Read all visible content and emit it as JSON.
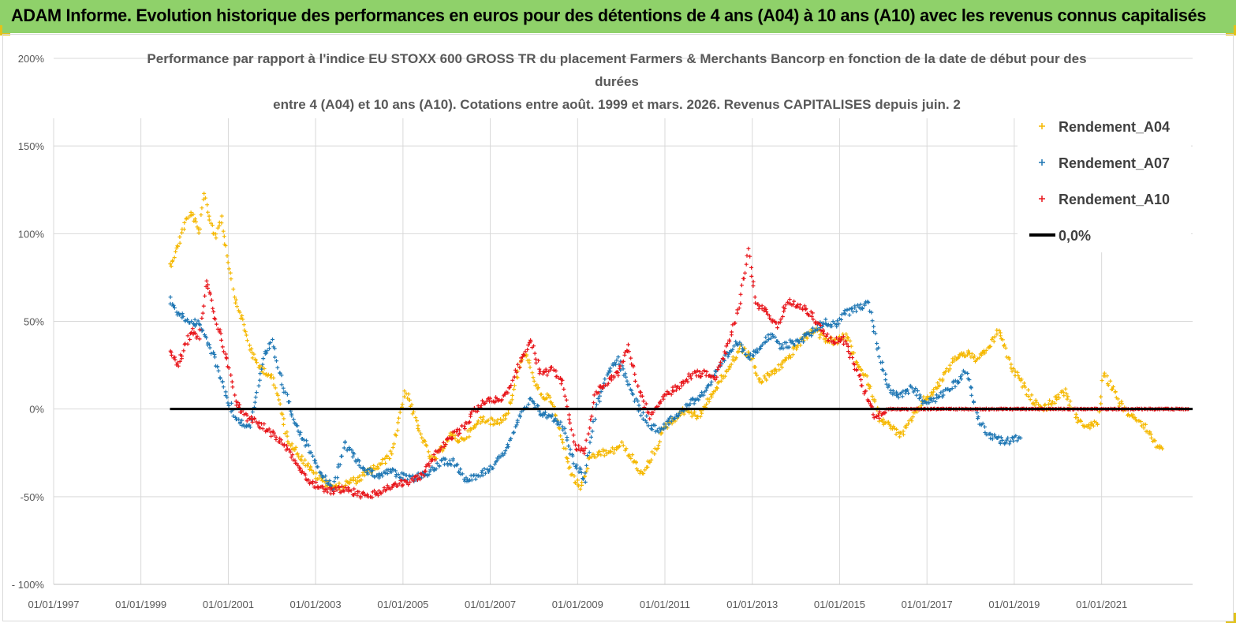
{
  "header": {
    "title": "ADAM Informe. Evolution historique des performances en euros pour des détentions de 4 ans (A04) à 10 ans (A10) avec les revenus connus capitalisés",
    "accent_color": "#8fd16a"
  },
  "chart_data": {
    "type": "scatter",
    "title_lines": [
      "Performance par rapport à l'indice EU STOXX 600 GROSS TR  du placement Farmers & Merchants Bancorp en fonction de la date de début pour des",
      "durées",
      "entre 4 (A04) et 10 ans (A10).  Cotations entre août. 1999 et mars.  2026. Revenus CAPITALISES depuis juin. 2"
    ],
    "ylim": [
      -100,
      200
    ],
    "yticks": [
      -100,
      -50,
      0,
      50,
      100,
      150,
      200
    ],
    "ytick_labels": [
      "- 100%",
      "-50%",
      "0%",
      "50%",
      "100%",
      "150%",
      "200%"
    ],
    "xlim": [
      "1997-01-01",
      "2023-02-01"
    ],
    "xtick_labels": [
      "01/01/1997",
      "01/01/1999",
      "01/01/2001",
      "01/01/2003",
      "01/01/2005",
      "01/01/2007",
      "01/01/2009",
      "01/01/2011",
      "01/01/2013",
      "01/01/2015",
      "01/01/2017",
      "01/01/2019",
      "01/01/2021"
    ],
    "grid": true,
    "legend_position": "top-right",
    "series": [
      {
        "name": "Rendement_A04",
        "color": "#f5b800",
        "marker": "+",
        "points": [
          [
            "1999-09-01",
            82
          ],
          [
            "1999-11-01",
            92
          ],
          [
            "2000-01-01",
            106
          ],
          [
            "2000-03-01",
            112
          ],
          [
            "2000-05-01",
            100
          ],
          [
            "2000-06-15",
            122
          ],
          [
            "2000-08-01",
            108
          ],
          [
            "2000-09-15",
            98
          ],
          [
            "2000-11-01",
            110
          ],
          [
            "2001-01-01",
            85
          ],
          [
            "2001-03-01",
            62
          ],
          [
            "2001-05-01",
            50
          ],
          [
            "2001-07-01",
            35
          ],
          [
            "2001-09-01",
            25
          ],
          [
            "2001-11-01",
            22
          ],
          [
            "2002-01-01",
            18
          ],
          [
            "2002-03-01",
            5
          ],
          [
            "2002-05-01",
            -15
          ],
          [
            "2002-07-01",
            -22
          ],
          [
            "2002-10-01",
            -30
          ],
          [
            "2003-01-01",
            -38
          ],
          [
            "2003-04-01",
            -42
          ],
          [
            "2003-07-01",
            -45
          ],
          [
            "2003-10-01",
            -42
          ],
          [
            "2004-01-01",
            -40
          ],
          [
            "2004-04-01",
            -35
          ],
          [
            "2004-07-01",
            -32
          ],
          [
            "2004-10-01",
            -25
          ],
          [
            "2004-12-01",
            -5
          ],
          [
            "2005-01-15",
            10
          ],
          [
            "2005-03-01",
            5
          ],
          [
            "2005-05-01",
            -10
          ],
          [
            "2005-07-01",
            -20
          ],
          [
            "2005-09-01",
            -30
          ],
          [
            "2005-11-01",
            -25
          ],
          [
            "2006-02-01",
            -15
          ],
          [
            "2006-05-01",
            -18
          ],
          [
            "2006-08-01",
            -12
          ],
          [
            "2006-11-01",
            -5
          ],
          [
            "2007-02-01",
            -8
          ],
          [
            "2007-05-01",
            -5
          ],
          [
            "2007-07-01",
            5
          ],
          [
            "2007-09-01",
            25
          ],
          [
            "2007-11-01",
            32
          ],
          [
            "2008-01-01",
            15
          ],
          [
            "2008-03-01",
            8
          ],
          [
            "2008-06-01",
            5
          ],
          [
            "2008-09-01",
            -20
          ],
          [
            "2008-12-01",
            -40
          ],
          [
            "2009-02-01",
            -45
          ],
          [
            "2009-04-01",
            -30
          ],
          [
            "2009-07-01",
            -25
          ],
          [
            "2009-10-01",
            -25
          ],
          [
            "2010-01-01",
            -20
          ],
          [
            "2010-04-01",
            -28
          ],
          [
            "2010-07-01",
            -38
          ],
          [
            "2010-10-01",
            -25
          ],
          [
            "2011-01-01",
            -10
          ],
          [
            "2011-04-01",
            -5
          ],
          [
            "2011-07-01",
            0
          ],
          [
            "2011-10-01",
            -5
          ],
          [
            "2012-01-01",
            5
          ],
          [
            "2012-04-01",
            15
          ],
          [
            "2012-07-01",
            25
          ],
          [
            "2012-10-01",
            35
          ],
          [
            "2013-01-01",
            28
          ],
          [
            "2013-03-01",
            15
          ],
          [
            "2013-06-01",
            20
          ],
          [
            "2013-09-01",
            25
          ],
          [
            "2013-12-01",
            32
          ],
          [
            "2014-03-01",
            40
          ],
          [
            "2014-06-01",
            45
          ],
          [
            "2014-09-01",
            40
          ],
          [
            "2014-12-01",
            38
          ],
          [
            "2015-03-01",
            42
          ],
          [
            "2015-06-01",
            25
          ],
          [
            "2015-09-01",
            15
          ],
          [
            "2015-12-01",
            -5
          ],
          [
            "2016-03-01",
            -10
          ],
          [
            "2016-06-01",
            -15
          ],
          [
            "2016-09-01",
            -5
          ],
          [
            "2016-12-01",
            5
          ],
          [
            "2017-03-01",
            10
          ],
          [
            "2017-06-01",
            20
          ],
          [
            "2017-09-01",
            30
          ],
          [
            "2017-12-01",
            32
          ],
          [
            "2018-03-01",
            28
          ],
          [
            "2018-06-01",
            35
          ],
          [
            "2018-09-01",
            45
          ],
          [
            "2018-12-01",
            25
          ],
          [
            "2019-03-01",
            15
          ],
          [
            "2019-06-01",
            5
          ],
          [
            "2019-09-01",
            0
          ],
          [
            "2019-12-01",
            5
          ],
          [
            "2020-03-01",
            10
          ],
          [
            "2020-06-01",
            -5
          ],
          [
            "2020-09-01",
            -10
          ],
          [
            "2020-12-01",
            -8
          ],
          [
            "2021-01-15",
            20
          ],
          [
            "2021-04-01",
            12
          ],
          [
            "2021-07-01",
            0
          ],
          [
            "2021-10-01",
            -5
          ],
          [
            "2022-01-01",
            -10
          ],
          [
            "2022-04-01",
            -20
          ],
          [
            "2022-06-01",
            -22
          ]
        ]
      },
      {
        "name": "Rendement_A07",
        "color": "#1f77b4",
        "marker": "+",
        "points": [
          [
            "1999-09-01",
            62
          ],
          [
            "1999-11-01",
            55
          ],
          [
            "2000-01-01",
            52
          ],
          [
            "2000-03-01",
            50
          ],
          [
            "2000-05-01",
            48
          ],
          [
            "2000-07-01",
            40
          ],
          [
            "2000-09-01",
            30
          ],
          [
            "2000-11-01",
            18
          ],
          [
            "2001-01-01",
            5
          ],
          [
            "2001-03-01",
            -5
          ],
          [
            "2001-05-01",
            -8
          ],
          [
            "2001-07-01",
            -10
          ],
          [
            "2001-09-01",
            10
          ],
          [
            "2001-11-01",
            30
          ],
          [
            "2002-01-01",
            38
          ],
          [
            "2002-03-01",
            22
          ],
          [
            "2002-06-01",
            0
          ],
          [
            "2002-09-01",
            -15
          ],
          [
            "2002-12-01",
            -25
          ],
          [
            "2003-03-01",
            -38
          ],
          [
            "2003-06-01",
            -45
          ],
          [
            "2003-09-01",
            -20
          ],
          [
            "2003-12-01",
            -28
          ],
          [
            "2004-03-01",
            -35
          ],
          [
            "2004-06-01",
            -38
          ],
          [
            "2004-09-01",
            -35
          ],
          [
            "2004-12-01",
            -38
          ],
          [
            "2005-03-01",
            -40
          ],
          [
            "2005-06-01",
            -38
          ],
          [
            "2005-09-01",
            -35
          ],
          [
            "2005-12-01",
            -30
          ],
          [
            "2006-03-01",
            -30
          ],
          [
            "2006-06-01",
            -40
          ],
          [
            "2006-09-01",
            -38
          ],
          [
            "2006-12-01",
            -35
          ],
          [
            "2007-03-01",
            -30
          ],
          [
            "2007-06-01",
            -20
          ],
          [
            "2007-09-01",
            -5
          ],
          [
            "2007-12-01",
            5
          ],
          [
            "2008-03-01",
            -2
          ],
          [
            "2008-06-01",
            -5
          ],
          [
            "2008-09-01",
            -10
          ],
          [
            "2008-12-01",
            -30
          ],
          [
            "2009-03-01",
            -40
          ],
          [
            "2009-06-01",
            0
          ],
          [
            "2009-09-01",
            20
          ],
          [
            "2009-12-01",
            28
          ],
          [
            "2010-03-01",
            15
          ],
          [
            "2010-06-01",
            0
          ],
          [
            "2010-09-01",
            -10
          ],
          [
            "2010-12-01",
            -12
          ],
          [
            "2011-03-01",
            -5
          ],
          [
            "2011-06-01",
            0
          ],
          [
            "2011-09-01",
            5
          ],
          [
            "2011-12-01",
            10
          ],
          [
            "2012-03-01",
            20
          ],
          [
            "2012-06-01",
            30
          ],
          [
            "2012-09-01",
            38
          ],
          [
            "2012-12-01",
            30
          ],
          [
            "2013-03-01",
            35
          ],
          [
            "2013-06-01",
            42
          ],
          [
            "2013-09-01",
            35
          ],
          [
            "2013-12-01",
            38
          ],
          [
            "2014-03-01",
            40
          ],
          [
            "2014-06-01",
            45
          ],
          [
            "2014-09-01",
            50
          ],
          [
            "2014-12-01",
            48
          ],
          [
            "2015-03-01",
            55
          ],
          [
            "2015-06-01",
            58
          ],
          [
            "2015-09-01",
            60
          ],
          [
            "2015-12-01",
            30
          ],
          [
            "2016-03-01",
            10
          ],
          [
            "2016-06-01",
            8
          ],
          [
            "2016-09-01",
            12
          ],
          [
            "2016-12-01",
            5
          ],
          [
            "2017-03-01",
            5
          ],
          [
            "2017-06-01",
            10
          ],
          [
            "2017-09-01",
            15
          ],
          [
            "2017-12-01",
            22
          ],
          [
            "2018-03-01",
            -5
          ],
          [
            "2018-06-01",
            -15
          ],
          [
            "2018-09-01",
            -18
          ],
          [
            "2018-12-01",
            -18
          ],
          [
            "2019-03-01",
            -15
          ]
        ]
      },
      {
        "name": "Rendement_A10",
        "color": "#e8161b",
        "marker": "+",
        "points": [
          [
            "1999-09-01",
            32
          ],
          [
            "1999-11-01",
            25
          ],
          [
            "2000-01-01",
            35
          ],
          [
            "2000-03-01",
            45
          ],
          [
            "2000-05-01",
            40
          ],
          [
            "2000-07-01",
            75
          ],
          [
            "2000-09-01",
            55
          ],
          [
            "2000-11-01",
            42
          ],
          [
            "2001-01-01",
            25
          ],
          [
            "2001-03-01",
            5
          ],
          [
            "2001-06-01",
            -5
          ],
          [
            "2001-09-01",
            -8
          ],
          [
            "2001-12-01",
            -12
          ],
          [
            "2002-03-01",
            -18
          ],
          [
            "2002-06-01",
            -25
          ],
          [
            "2002-09-01",
            -35
          ],
          [
            "2002-12-01",
            -42
          ],
          [
            "2003-03-01",
            -45
          ],
          [
            "2003-06-01",
            -47
          ],
          [
            "2003-09-01",
            -45
          ],
          [
            "2003-12-01",
            -48
          ],
          [
            "2004-03-01",
            -50
          ],
          [
            "2004-06-01",
            -48
          ],
          [
            "2004-09-01",
            -45
          ],
          [
            "2004-12-01",
            -42
          ],
          [
            "2005-03-01",
            -42
          ],
          [
            "2005-06-01",
            -38
          ],
          [
            "2005-09-01",
            -30
          ],
          [
            "2005-12-01",
            -20
          ],
          [
            "2006-03-01",
            -15
          ],
          [
            "2006-06-01",
            -10
          ],
          [
            "2006-09-01",
            0
          ],
          [
            "2006-12-01",
            5
          ],
          [
            "2007-03-01",
            5
          ],
          [
            "2007-06-01",
            10
          ],
          [
            "2007-09-01",
            25
          ],
          [
            "2007-12-01",
            40
          ],
          [
            "2008-03-01",
            20
          ],
          [
            "2008-06-01",
            22
          ],
          [
            "2008-09-01",
            15
          ],
          [
            "2008-12-01",
            -20
          ],
          [
            "2009-03-01",
            -25
          ],
          [
            "2009-06-01",
            10
          ],
          [
            "2009-09-01",
            15
          ],
          [
            "2009-12-01",
            20
          ],
          [
            "2010-03-01",
            35
          ],
          [
            "2010-06-01",
            10
          ],
          [
            "2010-09-01",
            -5
          ],
          [
            "2010-12-01",
            5
          ],
          [
            "2011-03-01",
            10
          ],
          [
            "2011-06-01",
            15
          ],
          [
            "2011-09-01",
            20
          ],
          [
            "2011-12-01",
            20
          ],
          [
            "2012-03-01",
            18
          ],
          [
            "2012-06-01",
            35
          ],
          [
            "2012-09-01",
            55
          ],
          [
            "2012-12-01",
            90
          ],
          [
            "2013-02-01",
            60
          ],
          [
            "2013-05-01",
            55
          ],
          [
            "2013-08-01",
            48
          ],
          [
            "2013-11-01",
            62
          ],
          [
            "2014-02-01",
            58
          ],
          [
            "2014-05-01",
            55
          ],
          [
            "2014-08-01",
            45
          ],
          [
            "2014-11-01",
            38
          ],
          [
            "2015-02-01",
            40
          ],
          [
            "2015-05-01",
            25
          ],
          [
            "2015-08-01",
            10
          ],
          [
            "2015-11-01",
            -5
          ],
          [
            "2016-02-01",
            0
          ],
          [
            "2016-06-01",
            0
          ],
          [
            "2017-01-01",
            0
          ],
          [
            "2018-01-01",
            0
          ],
          [
            "2019-01-01",
            0
          ],
          [
            "2020-01-01",
            0
          ],
          [
            "2021-01-01",
            0
          ],
          [
            "2022-01-01",
            0
          ],
          [
            "2023-01-01",
            0
          ]
        ]
      },
      {
        "name": "0,0%",
        "color": "#000000",
        "marker": "line",
        "points": [
          [
            "1999-09-01",
            0
          ],
          [
            "2023-02-01",
            0
          ]
        ]
      }
    ]
  }
}
